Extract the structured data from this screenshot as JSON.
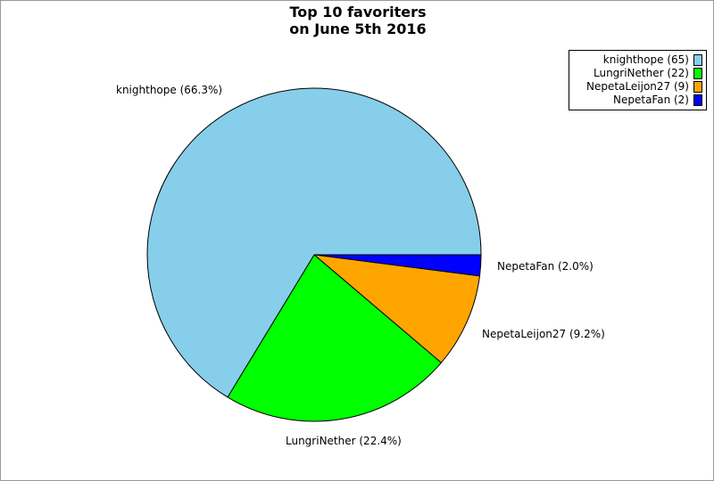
{
  "chart_data": {
    "type": "pie",
    "title_lines": [
      "Top 10 favoriters",
      "on June 5th 2016"
    ],
    "slices": [
      {
        "name": "knighthope",
        "value": 65,
        "label": "knighthope (66.3%)",
        "legend": "knighthope (65)",
        "color": "#87ceeb"
      },
      {
        "name": "LungriNether",
        "value": 22,
        "label": "LungriNether (22.4%)",
        "legend": "LungriNether (22)",
        "color": "#00ff00"
      },
      {
        "name": "NepetaLeijon27",
        "value": 9,
        "label": "NepetaLeijon27 (9.2%)",
        "legend": "NepetaLeijon27 (9)",
        "color": "#ffa500"
      },
      {
        "name": "NepetaFan",
        "value": 2,
        "label": "NepetaFan (2.0%)",
        "legend": "NepetaFan (2)",
        "color": "#0000ff"
      }
    ],
    "legend_position": "top-right"
  }
}
